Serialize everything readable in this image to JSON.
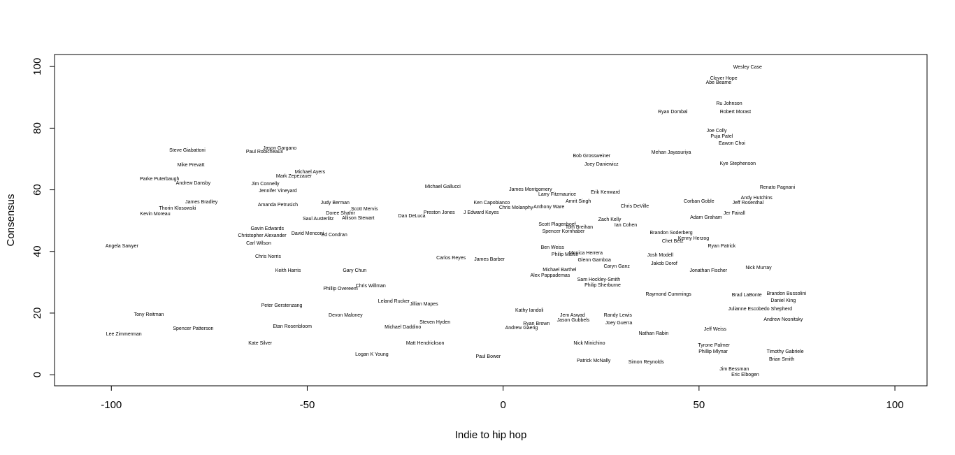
{
  "chart_data": {
    "type": "scatter",
    "marker": "text",
    "color": "#000000",
    "x_label": "Indie to hip hop",
    "y_label": "Consensus",
    "xlim": [
      -114.5,
      108.2
    ],
    "ylim": [
      -3.6,
      103.9
    ],
    "xticks": [
      -100,
      -50,
      0,
      50,
      100
    ],
    "yticks": [
      0,
      20,
      40,
      60,
      80,
      100
    ],
    "labels": [
      "Wesley Case",
      "Clover Hope",
      "Abe Beame",
      "Ru Johnson",
      "Ryan Dombal",
      "Robert Morast",
      "Joe Colly",
      "Puja Patel",
      "Eawon Choi",
      "Bob Grossweiner",
      "Joey Daniewicz",
      "Mehan Jayasuriya",
      "Kye Stephenson",
      "Renato Pagnani",
      "Andy Hutchins",
      "Jeff Rosenthal",
      "Corban Goble",
      "Jer Fairall",
      "Adam Graham",
      "Chet Betz",
      "Ryan Patrick",
      "Kenny Herzog",
      "Nick Murray",
      "Jonathan Fischer",
      "Brad LaBonte",
      "Brandon Bussolini",
      "Daniel King",
      "Julianne Escobedo Shepherd",
      "Andrew Nosnitsky",
      "Jeff Weiss",
      "Tyrone Palmer",
      "Phillip Mlynar",
      "Timothy Gabriele",
      "Brian Smith",
      "Jim Bessman",
      "Eric Elbogen",
      "Nathan Rabin",
      "Joey Guerra",
      "Randy Lewis",
      "Raymond Cummings",
      "Josh Modell",
      "Jakob Dorof",
      "Monica Herrera",
      "Glenn Gamboa",
      "Caryn Ganz",
      "Philip Sherburne",
      "Sam Hockley-Smith",
      "Michael Barthel",
      "Alex Pappademas",
      "Philip Martin",
      "Ben Weiss",
      "Tom Breihan",
      "Spencer Kornhaber",
      "Scott Plagenhoef",
      "Chris Molanphy",
      "Anthony Ware",
      "Amrit Singh",
      "Larry Fitzmaurice",
      "Erik Kenward",
      "James Montgomery",
      "Chris DeVille",
      "Zach Kelly",
      "Ian Cohen",
      "Brandon Soderberg",
      "Michael Gallucci",
      "Ken Capobianco",
      "J Edward Keyes",
      "Preston Jones",
      "Dan DeLuca",
      "Scott Mervis",
      "Allison Stewart",
      "Doree Shafrir",
      "Judy Berman",
      "Amanda Petrusich",
      "Jennifer Vineyard",
      "Jim Connelly",
      "Michael Ayers",
      "Mark Zepezauer",
      "Jason Gargano",
      "Paul Robicheaux",
      "Steve Giabattoni",
      "Mike Prevatt",
      "Parke Puterbaugh",
      "Andrew Dansby",
      "James Bradley",
      "Thorin Klosowski",
      "Kevin Moreau",
      "Angela Sawyer",
      "Gavin Edwards",
      "Christopher Alexander",
      "David Menconi",
      "Ed Condran",
      "Saul Austerlitz",
      "Chris Norris",
      "Carl Wilson",
      "Keith Harris",
      "Gary Chun",
      "Chris Willman",
      "Phillip Overeem",
      "Peter Gerstenzang",
      "Devon Maloney",
      "Leland Rucker",
      "Jillian Mapes",
      "Steven Hyden",
      "Michael Daddino",
      "Matt Hendrickson",
      "Logan K Young",
      "Tony Reitman",
      "Lee Zimmerman",
      "Etan Rosenbloom",
      "Spencer Patterson",
      "Kate Silver",
      "Paul Bower",
      "Kathy Iandoli",
      "Jason Gubbels",
      "Jem Aswad",
      "Andrew Gaerig",
      "Ryan Brown",
      "Nick Minichino",
      "Patrick McNally",
      "Simon Reynolds",
      "Carlos Reyes",
      "James Barber"
    ],
    "x": [
      62.4,
      56.3,
      55.0,
      57.7,
      43.3,
      59.3,
      54.5,
      55.8,
      58.4,
      22.6,
      25.1,
      42.9,
      59.9,
      70.0,
      64.7,
      62.5,
      50.0,
      59.0,
      51.8,
      43.3,
      55.8,
      48.6,
      65.2,
      52.4,
      62.2,
      72.3,
      71.5,
      65.6,
      71.5,
      54.1,
      53.8,
      53.6,
      72.0,
      71.1,
      59.0,
      61.8,
      38.4,
      29.5,
      29.3,
      42.2,
      40.1,
      41.1,
      21.1,
      23.3,
      29.0,
      25.4,
      24.4,
      14.4,
      12.0,
      15.8,
      12.6,
      19.4,
      15.4,
      13.8,
      3.3,
      11.7,
      19.2,
      13.8,
      26.1,
      7.0,
      33.6,
      27.2,
      31.3,
      42.9,
      -15.4,
      -2.9,
      -5.6,
      -16.3,
      -23.3,
      -35.4,
      -37.0,
      -41.5,
      -42.9,
      -57.5,
      -57.5,
      -60.7,
      -49.3,
      -53.4,
      -57.0,
      -60.9,
      -80.6,
      -79.7,
      -87.7,
      -79.1,
      -77.0,
      -83.1,
      -88.8,
      -97.3,
      -60.2,
      -61.5,
      -49.9,
      -43.1,
      -47.2,
      -60.0,
      -62.4,
      -54.9,
      -37.9,
      -33.8,
      -41.5,
      -56.5,
      -40.2,
      -27.9,
      -20.2,
      -17.4,
      -25.6,
      -19.9,
      -33.5,
      -90.4,
      -96.8,
      -53.8,
      -79.1,
      -62.0,
      -3.8,
      6.7,
      17.9,
      17.7,
      4.7,
      8.5,
      22.0,
      23.1,
      36.5,
      -13.3,
      -3.5
    ],
    "values": [
      99.8,
      96.1,
      94.8,
      88.0,
      85.3,
      85.3,
      79.1,
      77.3,
      75.1,
      71.0,
      68.3,
      72.1,
      68.5,
      60.8,
      57.4,
      55.8,
      56.2,
      52.4,
      51.0,
      43.3,
      41.7,
      44.2,
      34.7,
      33.8,
      25.9,
      26.3,
      24.0,
      21.3,
      17.9,
      14.7,
      9.5,
      7.5,
      7.5,
      5.0,
      1.8,
      0,
      13.4,
      16.8,
      19.3,
      26.1,
      38.8,
      36.1,
      39.5,
      37.2,
      35.1,
      29.0,
      30.8,
      34.0,
      32.2,
      39.0,
      41.3,
      47.8,
      46.5,
      48.8,
      54.2,
      54.4,
      56.2,
      58.5,
      59.2,
      60.1,
      54.6,
      50.3,
      48.5,
      46.0,
      61.0,
      55.8,
      52.6,
      52.6,
      51.5,
      53.7,
      50.8,
      52.4,
      55.8,
      55.1,
      59.6,
      61.9,
      65.8,
      64.4,
      73.5,
      72.3,
      72.8,
      68.0,
      63.5,
      62.1,
      56.0,
      54.0,
      52.2,
      41.7,
      47.4,
      45.1,
      45.8,
      45.4,
      50.6,
      38.3,
      42.6,
      33.8,
      33.8,
      28.8,
      27.9,
      22.4,
      19.3,
      23.8,
      22.9,
      17.0,
      15.4,
      10.2,
      6.6,
      19.5,
      13.2,
      15.6,
      15.0,
      10.2,
      5.9,
      20.9,
      17.7,
      19.3,
      15.2,
      16.6,
      10.2,
      4.5,
      4.1,
      37.9,
      37.4
    ]
  }
}
